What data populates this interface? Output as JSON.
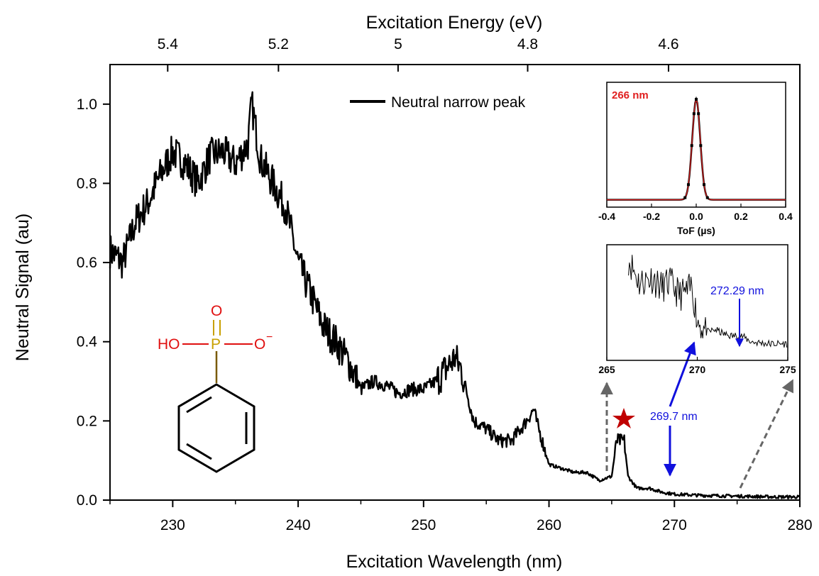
{
  "chart_data": [
    {
      "type": "line",
      "xlabel": "Excitation Wavelength (nm)",
      "ylabel": "Neutral Signal (au)",
      "top_axis_label": "Excitation Energy (eV)",
      "xlim": [
        225,
        280
      ],
      "ylim": [
        0,
        1.1
      ],
      "x_ticks": [
        "230",
        "240",
        "250",
        "260",
        "270",
        "280"
      ],
      "y_ticks": [
        "0.0",
        "0.2",
        "0.4",
        "0.6",
        "0.8",
        "1.0"
      ],
      "top_ticks": [
        "5.4",
        "5.2",
        "5",
        "4.8",
        "4.6"
      ],
      "legend": "top-center",
      "grid": false,
      "series": [
        {
          "name": "Neutral narrow peak",
          "color": "#000000",
          "x": [
            225,
            226,
            227,
            228,
            229,
            230,
            231,
            232,
            233,
            234,
            235,
            236,
            236.3,
            237,
            238,
            239,
            240,
            241,
            242,
            243,
            244,
            245,
            246,
            247,
            248,
            249,
            250,
            251,
            252,
            252.5,
            253,
            254,
            255,
            256,
            257,
            258,
            258.8,
            259,
            260,
            261,
            262,
            263,
            264,
            265,
            265.4,
            265.6,
            266,
            266.3,
            267,
            268,
            269,
            270,
            272,
            275,
            278,
            280
          ],
          "values": [
            0.63,
            0.6,
            0.7,
            0.75,
            0.82,
            0.88,
            0.85,
            0.8,
            0.87,
            0.88,
            0.85,
            0.9,
            1.0,
            0.86,
            0.8,
            0.74,
            0.6,
            0.52,
            0.44,
            0.4,
            0.35,
            0.28,
            0.3,
            0.29,
            0.27,
            0.28,
            0.28,
            0.3,
            0.34,
            0.36,
            0.33,
            0.2,
            0.18,
            0.15,
            0.15,
            0.19,
            0.23,
            0.2,
            0.09,
            0.08,
            0.07,
            0.07,
            0.05,
            0.06,
            0.15,
            0.15,
            0.15,
            0.06,
            0.03,
            0.03,
            0.02,
            0.015,
            0.012,
            0.01,
            0.008,
            0.008
          ]
        }
      ],
      "annotations": {
        "peak_label": "269.7 nm",
        "molecule_labels": [
          "O",
          "HO",
          "P",
          "O",
          "−"
        ]
      }
    },
    {
      "type": "line",
      "title": "266 nm",
      "xlabel": "ToF (µs)",
      "xlim": [
        -0.4,
        0.4
      ],
      "x_ticks": [
        "-0.4",
        "-0.2",
        "0.0",
        "0.2",
        "0.4"
      ],
      "series_color": "#000000",
      "fit_color": "#e02020",
      "x": [
        -0.4,
        -0.1,
        -0.05,
        -0.03,
        -0.01,
        0.0,
        0.01,
        0.03,
        0.05,
        0.1,
        0.4
      ],
      "values": [
        0.03,
        0.03,
        0.06,
        0.3,
        0.85,
        1.0,
        0.85,
        0.3,
        0.06,
        0.03,
        0.03
      ]
    },
    {
      "type": "line",
      "xlim": [
        265,
        275
      ],
      "x_ticks": [
        "265",
        "270",
        "275"
      ],
      "annotation": "272.29 nm",
      "x": [
        266.2,
        266.8,
        267.5,
        268,
        268.5,
        269,
        269.5,
        269.7,
        270,
        270.5,
        271,
        271.5,
        272,
        272.29,
        273,
        274,
        275
      ],
      "values": [
        1.0,
        0.75,
        0.8,
        0.7,
        0.75,
        0.62,
        0.65,
        0.72,
        0.35,
        0.22,
        0.25,
        0.2,
        0.18,
        0.2,
        0.12,
        0.1,
        0.1
      ]
    }
  ]
}
